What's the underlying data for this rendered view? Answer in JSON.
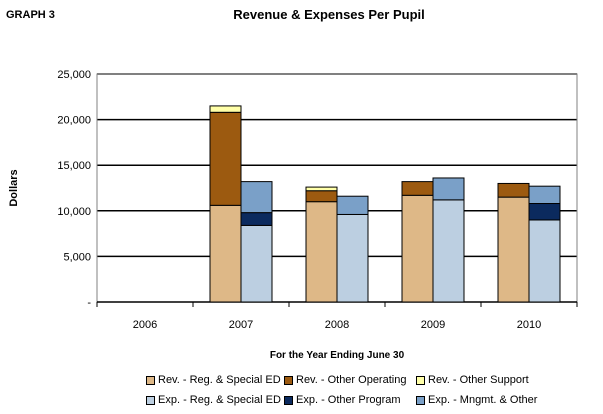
{
  "header": {
    "graph_label": "GRAPH 3"
  },
  "chart_data": {
    "type": "bar",
    "stacked": true,
    "grouped": true,
    "title": "Revenue & Expenses Per Pupil",
    "xlabel": "For the Year Ending June 30",
    "ylabel": "Dollars",
    "categories": [
      "2006",
      "2007",
      "2008",
      "2009",
      "2010"
    ],
    "ylim": [
      0,
      25000
    ],
    "yticks": [
      0,
      5000,
      10000,
      15000,
      20000,
      25000
    ],
    "ytick_labels": [
      "-",
      "5,000",
      "10,000",
      "15,000",
      "20,000",
      "25,000"
    ],
    "grid": true,
    "legend_position": "bottom",
    "groups": [
      {
        "name": "Revenue",
        "series": [
          {
            "name": "Rev. - Reg. & Special ED",
            "color": "#deb887",
            "values": [
              0,
              10600,
              11000,
              11700,
              11500
            ]
          },
          {
            "name": "Rev. - Other Operating",
            "color": "#9c5a10",
            "values": [
              0,
              10200,
              1200,
              1500,
              1500
            ]
          },
          {
            "name": "Rev. - Other Support",
            "color": "#ffffa8",
            "values": [
              0,
              700,
              400,
              0,
              0
            ]
          }
        ]
      },
      {
        "name": "Expenses",
        "series": [
          {
            "name": "Exp. - Reg. & Special ED",
            "color": "#bccfe1",
            "values": [
              0,
              8400,
              9600,
              11200,
              9000
            ]
          },
          {
            "name": "Exp. - Other Program",
            "color": "#0b2a5e",
            "values": [
              0,
              1400,
              0,
              0,
              1800
            ]
          },
          {
            "name": "Exp. - Mngmt. & Other",
            "color": "#7aa0c8",
            "values": [
              0,
              3400,
              2000,
              2400,
              1900
            ]
          }
        ]
      }
    ]
  }
}
